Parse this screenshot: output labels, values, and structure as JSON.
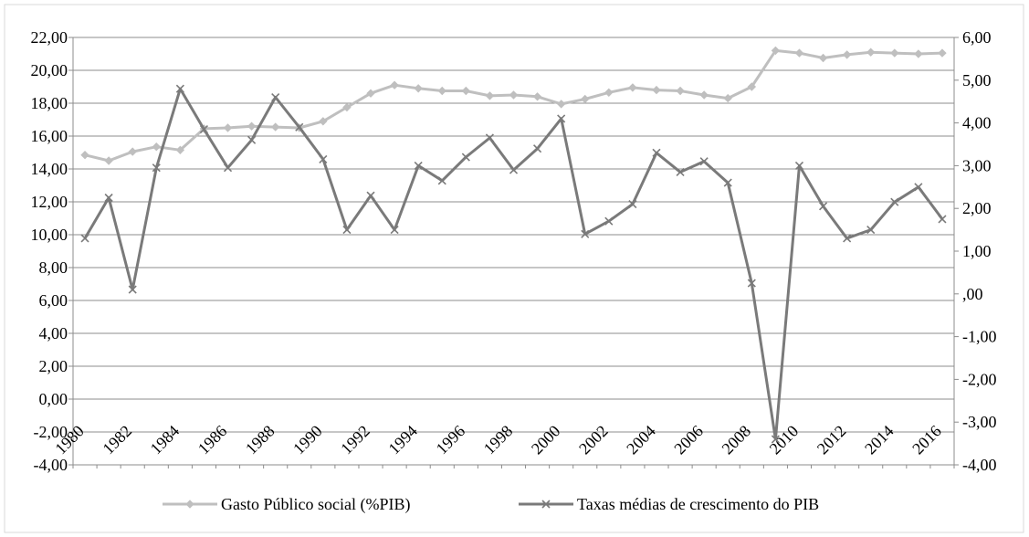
{
  "chart_data": {
    "type": "line",
    "title": "",
    "x": [
      "1980",
      "1981",
      "1982",
      "1983",
      "1984",
      "1985",
      "1986",
      "1987",
      "1988",
      "1989",
      "1990",
      "1991",
      "1992",
      "1993",
      "1994",
      "1995",
      "1996",
      "1997",
      "1998",
      "1999",
      "2000",
      "2001",
      "2002",
      "2003",
      "2004",
      "2005",
      "2006",
      "2007",
      "2008",
      "2009",
      "2010",
      "2011",
      "2012",
      "2013",
      "2014",
      "2015",
      "2016"
    ],
    "x_tick_labels": [
      "1980",
      "1982",
      "1984",
      "1986",
      "1988",
      "1990",
      "1992",
      "1994",
      "1996",
      "1998",
      "2000",
      "2002",
      "2004",
      "2006",
      "2008",
      "2010",
      "2012",
      "2014",
      "2016"
    ],
    "y_left": {
      "min": -4,
      "max": 22,
      "step": 2,
      "tick_labels": [
        "-4,00",
        "-2,00",
        "0,00",
        "2,00",
        "4,00",
        "6,00",
        "8,00",
        "10,00",
        "12,00",
        "14,00",
        "16,00",
        "18,00",
        "20,00",
        "22,00"
      ]
    },
    "y_right": {
      "min": -4,
      "max": 6,
      "step": 1,
      "tick_labels": [
        "-4,00",
        "-3,00",
        "-2,00",
        "-1,00",
        ",00",
        "1,00",
        "2,00",
        "3,00",
        "4,00",
        "5,00",
        "6,00"
      ]
    },
    "grid": true,
    "legend_position": "bottom",
    "series": [
      {
        "name": "Gasto Público social (%PIB)",
        "axis": "left",
        "color": "#bfbfbf",
        "marker": "diamond",
        "values": [
          14.85,
          14.5,
          15.05,
          15.35,
          15.15,
          16.45,
          16.5,
          16.6,
          16.55,
          16.5,
          16.9,
          17.75,
          18.6,
          19.1,
          18.9,
          18.75,
          18.75,
          18.45,
          18.5,
          18.4,
          17.95,
          18.25,
          18.65,
          18.95,
          18.8,
          18.75,
          18.5,
          18.3,
          19.0,
          21.2,
          21.05,
          20.75,
          20.95,
          21.1,
          21.05,
          21.0,
          21.05
        ]
      },
      {
        "name": "Taxas médias de crescimento do PIB",
        "axis": "right",
        "color": "#7a7a7a",
        "marker": "x",
        "values": [
          1.3,
          2.25,
          0.1,
          2.95,
          4.8,
          3.85,
          2.95,
          3.6,
          4.6,
          3.9,
          3.15,
          1.5,
          2.3,
          1.5,
          3.0,
          2.65,
          3.2,
          3.65,
          2.9,
          3.4,
          4.1,
          1.4,
          1.7,
          2.1,
          3.3,
          2.85,
          3.1,
          2.6,
          0.25,
          -3.4,
          3.0,
          2.05,
          1.3,
          1.5,
          2.15,
          2.5,
          1.75
        ]
      }
    ]
  }
}
